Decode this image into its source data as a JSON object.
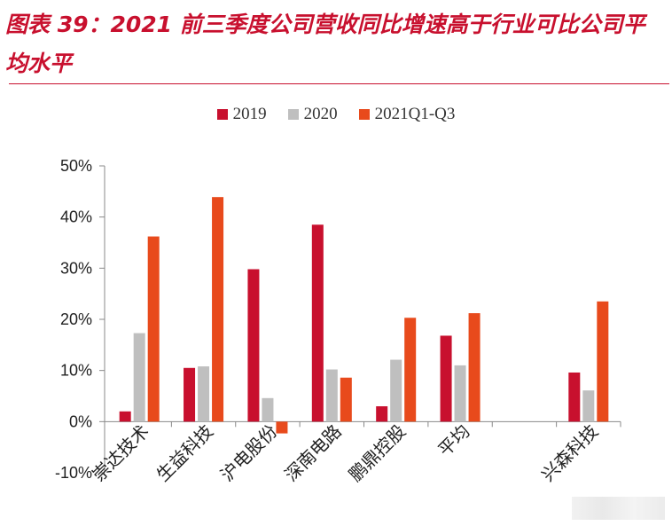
{
  "title": "图表 39：2021 前三季度公司营收同比增速高于行业可比公司平均水平",
  "colors": {
    "s2019": "#c8102e",
    "s2020": "#bfbfbf",
    "s2021": "#e84a1c",
    "title": "#c8102e"
  },
  "chart_data": {
    "type": "bar",
    "categories": [
      "崇达技术",
      "生益科技",
      "沪电股份",
      "深南电路",
      "鹏鼎控股",
      "平均",
      "",
      "兴森科技"
    ],
    "series": [
      {
        "name": "2019",
        "values": [
          2,
          10.5,
          29.8,
          38.5,
          3,
          16.8,
          null,
          9.6
        ]
      },
      {
        "name": "2020",
        "values": [
          17.3,
          10.8,
          4.6,
          10.2,
          12.1,
          11,
          null,
          6.1
        ]
      },
      {
        "name": "2021Q1-Q3",
        "values": [
          36.2,
          43.9,
          -2.3,
          8.6,
          20.3,
          21.2,
          null,
          23.5
        ]
      }
    ],
    "yticks": [
      "-10%",
      "0%",
      "10%",
      "20%",
      "30%",
      "40%",
      "50%"
    ],
    "ylim": [
      -10,
      50
    ],
    "legend_position": "top-center",
    "grid": false
  }
}
